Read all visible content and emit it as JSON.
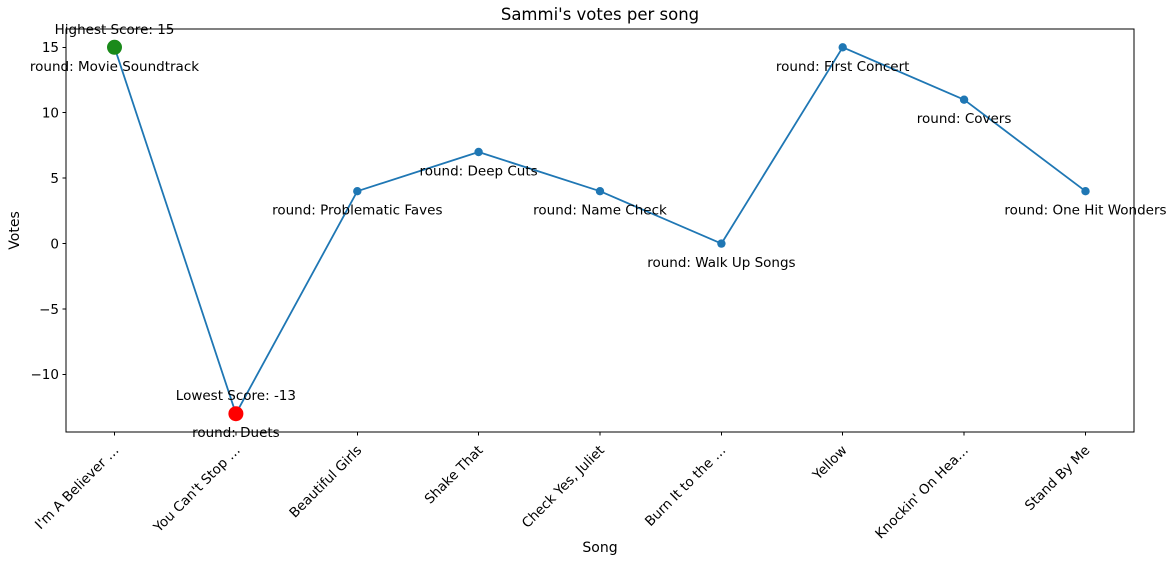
{
  "chart_data": {
    "type": "line",
    "title": "Sammi's votes per song",
    "xlabel": "Song",
    "ylabel": "Votes",
    "categories": [
      "I'm A Believer …",
      "You Can't Stop …",
      "Beautiful Girls",
      "Shake That",
      "Check Yes, Juliet",
      "Burn It to the …",
      "Yellow",
      "Knockin' On Hea…",
      "Stand By Me"
    ],
    "values": [
      15,
      -13,
      4,
      7,
      4,
      0,
      15,
      11,
      4
    ],
    "point_annotations": [
      "round: Movie Soundtrack",
      "round: Duets",
      "round: Problematic Faves",
      "round: Deep Cuts",
      "round: Name Check",
      "round: Walk Up Songs",
      "round: First Concert",
      "round: Covers",
      "round: One Hit Wonders"
    ],
    "highlights": [
      {
        "index": 0,
        "label": "Highest Score: 15",
        "color": "#1a8a1a",
        "value": 15
      },
      {
        "index": 1,
        "label": "Lowest Score: -13",
        "color": "#ff0000",
        "value": -13
      }
    ],
    "line_color": "#1f77b4",
    "marker_color": "#1f77b4",
    "yticks": [
      15,
      10,
      5,
      0,
      -5,
      -10
    ],
    "ylim": [
      -14.4,
      16.4
    ],
    "xlim": [
      -0.4,
      8.4
    ],
    "grid": false,
    "legend": "none",
    "background_color": "#ffffff",
    "spine_color": "#000000"
  }
}
